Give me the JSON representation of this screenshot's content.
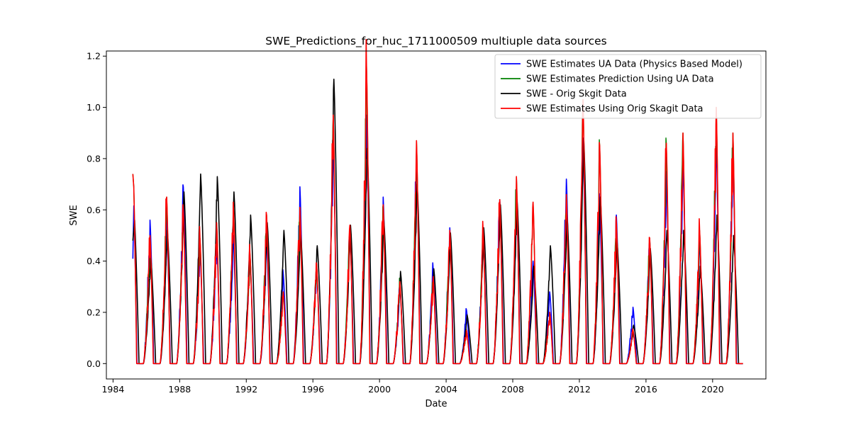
{
  "chart_data": {
    "type": "line",
    "title": "SWE_Predictions_for_huc_1711000509 multiuple data sources",
    "xlabel": "Date",
    "ylabel": "SWE",
    "xlim": [
      1983.6,
      2023.2
    ],
    "ylim": [
      -0.06,
      1.22
    ],
    "x_ticks": [
      1984,
      1988,
      1992,
      1996,
      2000,
      2004,
      2008,
      2012,
      2016,
      2020
    ],
    "y_ticks": [
      0.0,
      0.2,
      0.4,
      0.6,
      0.8,
      1.0,
      1.2
    ],
    "grid": false,
    "legend_position": "upper-right",
    "peak_years": [
      1985,
      1986,
      1987,
      1988,
      1989,
      1990,
      1991,
      1992,
      1993,
      1994,
      1995,
      1996,
      1997,
      1998,
      1999,
      2000,
      2001,
      2002,
      2003,
      2004,
      2005,
      2006,
      2007,
      2008,
      2009,
      2010,
      2011,
      2012,
      2013,
      2014,
      2015,
      2016,
      2017,
      2018,
      2019,
      2020,
      2021
    ],
    "series": [
      {
        "name": "SWE Estimates UA Data (Physics Based Model)",
        "color": "#0000ff",
        "annual_peak": [
          0.66,
          0.56,
          0.55,
          0.69,
          0.44,
          0.48,
          0.5,
          0.42,
          0.48,
          0.35,
          0.69,
          0.38,
          0.88,
          0.52,
          0.97,
          0.65,
          0.3,
          0.82,
          0.37,
          0.53,
          0.21,
          0.51,
          0.64,
          0.66,
          0.4,
          0.28,
          0.72,
          0.88,
          0.62,
          0.58,
          0.22,
          0.48,
          0.75,
          0.8,
          0.48,
          0.85,
          0.8
        ]
      },
      {
        "name": "SWE Estimates Prediction Using UA Data",
        "color": "#008000",
        "annual_peak": [
          0.74,
          0.5,
          0.65,
          0.6,
          0.49,
          0.55,
          0.63,
          0.43,
          0.58,
          0.28,
          0.61,
          0.39,
          0.97,
          0.54,
          1.16,
          0.62,
          0.32,
          0.87,
          0.34,
          0.52,
          0.13,
          0.52,
          0.64,
          0.73,
          0.63,
          0.2,
          0.66,
          1.03,
          0.85,
          0.55,
          0.13,
          0.49,
          0.86,
          0.9,
          0.52,
          1.0,
          0.9
        ]
      },
      {
        "name": "SWE - Orig Skgit Data",
        "color": "#000000",
        "annual_peak": [
          0.6,
          0.42,
          0.52,
          0.67,
          0.74,
          0.73,
          0.67,
          0.58,
          0.55,
          0.52,
          0.52,
          0.46,
          1.11,
          0.54,
          0.84,
          0.56,
          0.36,
          0.7,
          0.37,
          0.51,
          0.19,
          0.53,
          0.62,
          0.64,
          0.38,
          0.46,
          0.58,
          0.88,
          0.65,
          0.48,
          0.15,
          0.45,
          0.52,
          0.52,
          0.38,
          0.58,
          0.5
        ]
      },
      {
        "name": "SWE Estimates Using Orig Skagit Data",
        "color": "#ff0000",
        "annual_peak": [
          0.74,
          0.5,
          0.65,
          0.6,
          0.49,
          0.55,
          0.63,
          0.43,
          0.58,
          0.28,
          0.61,
          0.39,
          0.97,
          0.54,
          1.16,
          0.62,
          0.32,
          0.87,
          0.34,
          0.52,
          0.13,
          0.52,
          0.64,
          0.73,
          0.63,
          0.2,
          0.66,
          1.03,
          0.85,
          0.55,
          0.13,
          0.49,
          0.86,
          0.9,
          0.52,
          1.0,
          0.9
        ]
      }
    ]
  }
}
